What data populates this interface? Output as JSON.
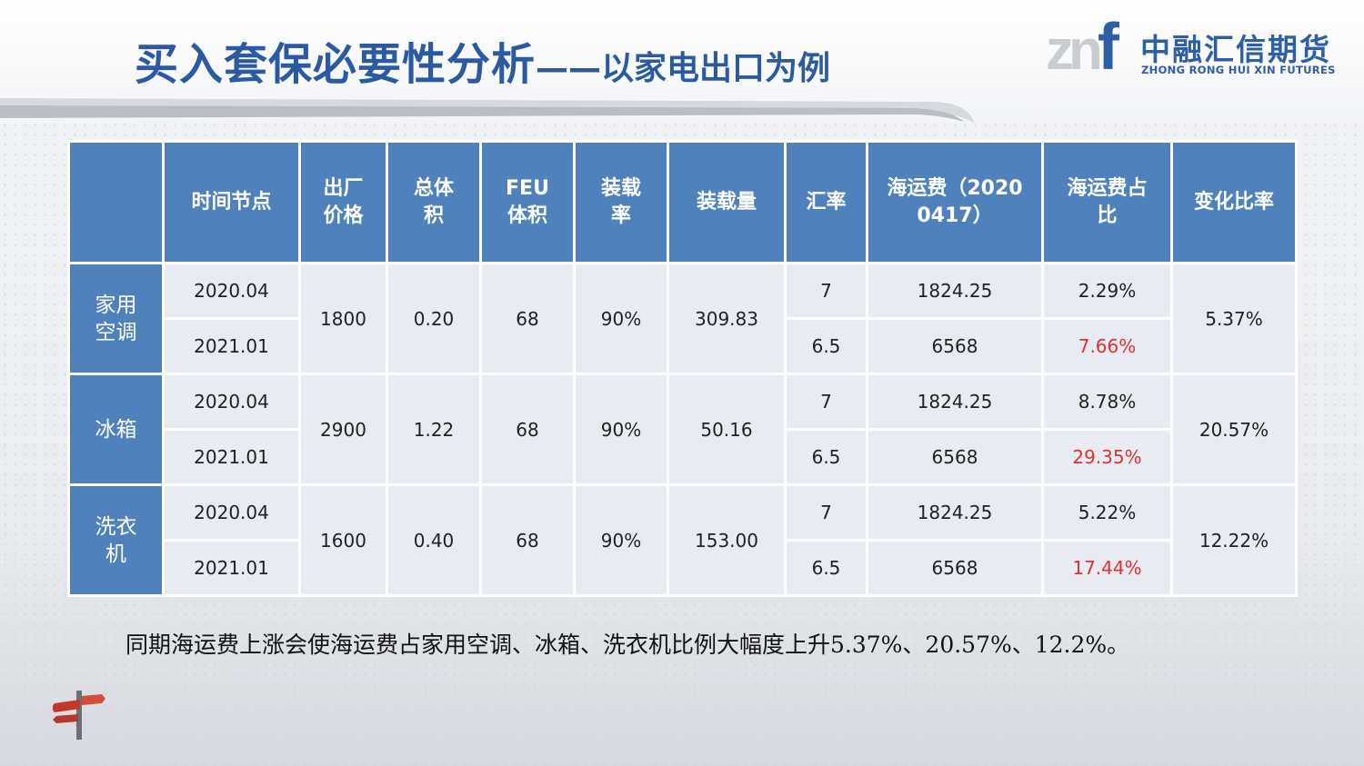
{
  "colors": {
    "accent": "#4f81bd",
    "title": "#2b5aa3",
    "rise": "#e03131"
  },
  "header": {
    "title": "买入套保必要性分析",
    "subtitle": "——以家电出口为例"
  },
  "logo": {
    "mark": "zn",
    "mark_f": "f",
    "cn": "中融汇信期货",
    "en": "ZHONG RONG HUI XIN FUTURES"
  },
  "table": {
    "columns": [
      "",
      "时间节点",
      "出厂价格",
      "总体积",
      "FEU 体积",
      "装载率",
      "装载量",
      "汇率",
      "海运费（20200417）",
      "海运费占比",
      "变化比率"
    ],
    "groups": [
      {
        "product": "家用空调",
        "price": "1800",
        "volume": "0.20",
        "feu": "68",
        "load_rate": "90%",
        "load_qty": "309.83",
        "change": "5.37%",
        "rows": [
          {
            "time": "2020.04",
            "fx": "7",
            "freight": "1824.25",
            "share": "2.29%"
          },
          {
            "time": "2021.01",
            "fx": "6.5",
            "freight": "6568",
            "share": "7.66%"
          }
        ]
      },
      {
        "product": "冰箱",
        "price": "2900",
        "volume": "1.22",
        "feu": "68",
        "load_rate": "90%",
        "load_qty": "50.16",
        "change": "20.57%",
        "rows": [
          {
            "time": "2020.04",
            "fx": "7",
            "freight": "1824.25",
            "share": "8.78%"
          },
          {
            "time": "2021.01",
            "fx": "6.5",
            "freight": "6568",
            "share": "29.35%"
          }
        ]
      },
      {
        "product": "洗衣机",
        "price": "1600",
        "volume": "0.40",
        "feu": "68",
        "load_rate": "90%",
        "load_qty": "153.00",
        "change": "12.22%",
        "rows": [
          {
            "time": "2020.04",
            "fx": "7",
            "freight": "1824.25",
            "share": "5.22%"
          },
          {
            "time": "2021.01",
            "fx": "6.5",
            "freight": "6568",
            "share": "17.44%"
          }
        ]
      }
    ]
  },
  "summary": "同期海运费上涨会使海运费占家用空调、冰箱、洗衣机比例大幅度上升5.37%、20.57%、12.2%。"
}
